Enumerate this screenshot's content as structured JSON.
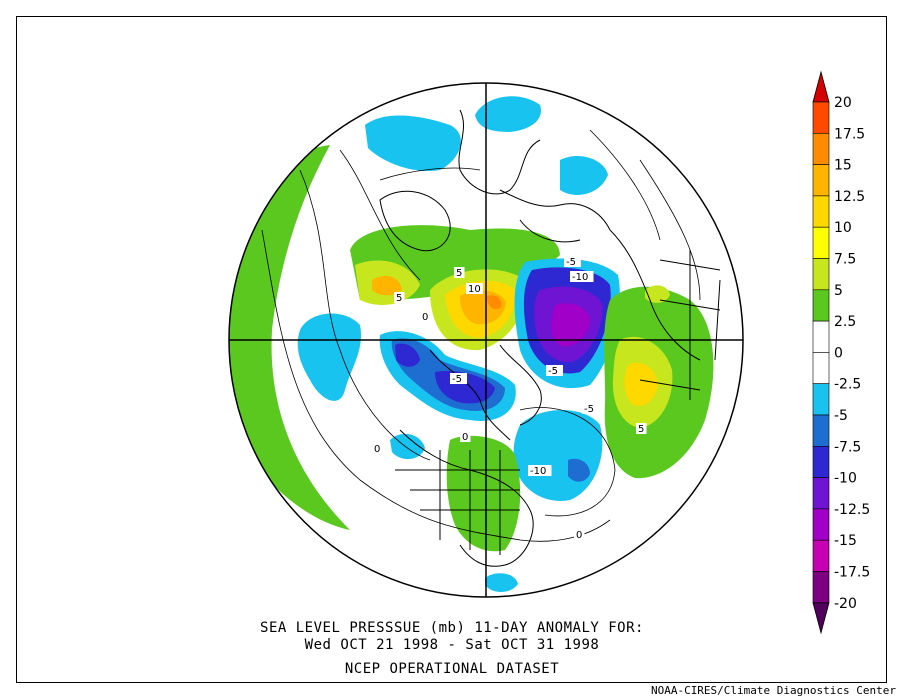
{
  "title": {
    "line1": "SEA LEVEL PRESSSUE (mb)   11-DAY ANOMALY FOR:",
    "line2": "Wed OCT 21 1998 - Sat OCT 31 1998",
    "line3": "NCEP OPERATIONAL DATASET"
  },
  "credit": "NOAA-CIRES/Climate Diagnostics Center",
  "colorbar": {
    "levels": [
      "20",
      "17.5",
      "15",
      "12.5",
      "10",
      "7.5",
      "5",
      "2.5",
      "0",
      "-2.5",
      "-5",
      "-7.5",
      "-10",
      "-12.5",
      "-15",
      "-17.5",
      "-20"
    ],
    "colors": [
      "#d40000",
      "#ff4a00",
      "#ff8c00",
      "#ffb400",
      "#ffd800",
      "#ffff00",
      "#c8e61e",
      "#5ac81e",
      "#ffffff",
      "#ffffff",
      "#19c3f0",
      "#1e6ed2",
      "#2d28d2",
      "#6e14d2",
      "#a000c8",
      "#c800b4",
      "#7d0082",
      "#50005a"
    ]
  },
  "contour_labels": [
    "5",
    "5",
    "10",
    "0",
    "-5",
    "-10",
    "-5",
    "-5",
    "-5",
    "5",
    "0",
    "-10",
    "0",
    "0"
  ],
  "colors": {
    "positive_green": "#5ac81e",
    "positive_yellow": "#c8e61e",
    "positive_orange": "#ffb400",
    "negative_cyan": "#19c3f0",
    "negative_blue": "#1e6ed2",
    "negative_indigo": "#2d28d2",
    "negative_purple": "#6e14d2"
  }
}
